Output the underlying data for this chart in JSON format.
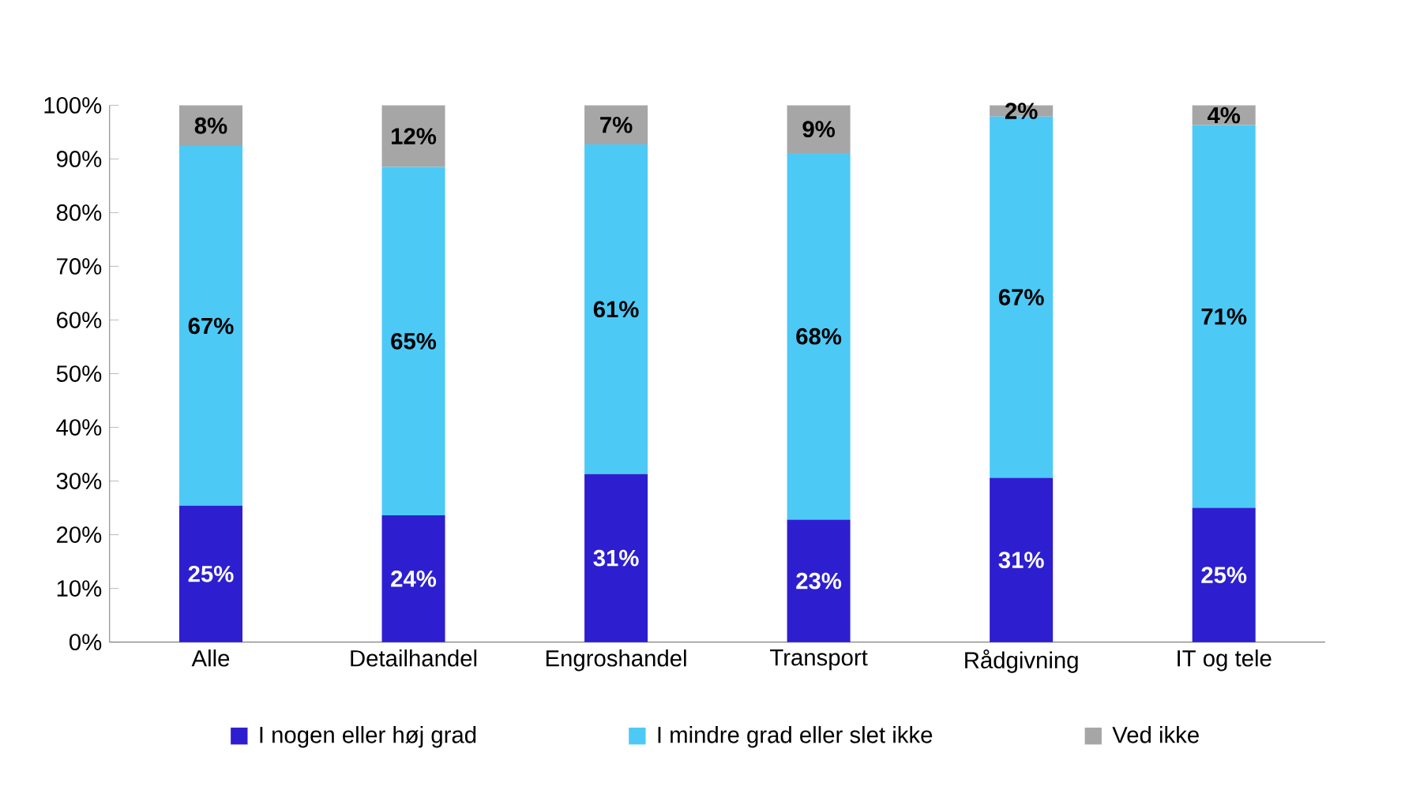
{
  "chart_data": {
    "type": "bar",
    "stacked": true,
    "categories": [
      "Alle",
      "Detailhandel",
      "Engroshandel",
      "Transport",
      "Rådgivning",
      "IT og tele"
    ],
    "series": [
      {
        "name": "I nogen eller høj grad",
        "color": "#2d1fcf",
        "values": [
          25.4,
          23.6,
          31.3,
          22.8,
          30.6,
          25.0
        ],
        "value_labels": [
          "25%",
          "24%",
          "31%",
          "23%",
          "31%",
          "25%"
        ]
      },
      {
        "name": "I mindre grad eller slet ikke",
        "color": "#4dc9f6",
        "values": [
          67.0,
          64.9,
          61.4,
          68.3,
          67.3,
          71.3
        ],
        "value_labels": [
          "67%",
          "65%",
          "61%",
          "68%",
          "67%",
          "71%"
        ]
      },
      {
        "name": "Ved ikke",
        "color": "#a6a6a6",
        "values": [
          7.6,
          11.5,
          7.3,
          8.9,
          2.1,
          3.7
        ],
        "value_labels": [
          "8%",
          "12%",
          "7%",
          "9%",
          "2%",
          "4%"
        ]
      }
    ],
    "ylim": [
      0,
      100
    ],
    "yticks": [
      {
        "value": 0,
        "label": "0%"
      },
      {
        "value": 10,
        "label": "10%"
      },
      {
        "value": 20,
        "label": "20%"
      },
      {
        "value": 30,
        "label": "30%"
      },
      {
        "value": 40,
        "label": "40%"
      },
      {
        "value": 50,
        "label": "50%"
      },
      {
        "value": 60,
        "label": "60%"
      },
      {
        "value": 70,
        "label": "70%"
      },
      {
        "value": 80,
        "label": "80%"
      },
      {
        "value": 90,
        "label": "90%"
      },
      {
        "value": 100,
        "label": "100%"
      }
    ],
    "grid": false,
    "legend": "bottom"
  }
}
